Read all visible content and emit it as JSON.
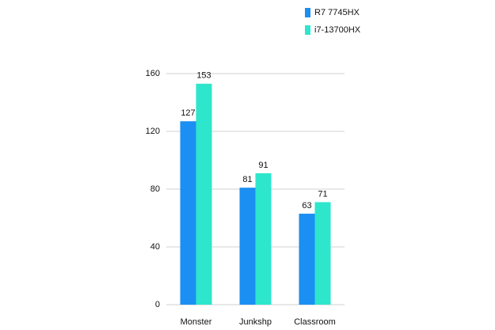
{
  "chart_data": {
    "type": "bar",
    "categories": [
      "Monster",
      "Junkshp",
      "Classroom"
    ],
    "series": [
      {
        "name": "R7 7745HX",
        "color": "#1b8ff2",
        "values": [
          127,
          81,
          63
        ]
      },
      {
        "name": "i7-13700HX",
        "color": "#2ee6cc",
        "values": [
          153,
          91,
          71
        ]
      }
    ],
    "ylim": [
      0,
      160
    ],
    "yticks": [
      0,
      40,
      80,
      120,
      160
    ],
    "grid": true,
    "legend": "top-right"
  }
}
